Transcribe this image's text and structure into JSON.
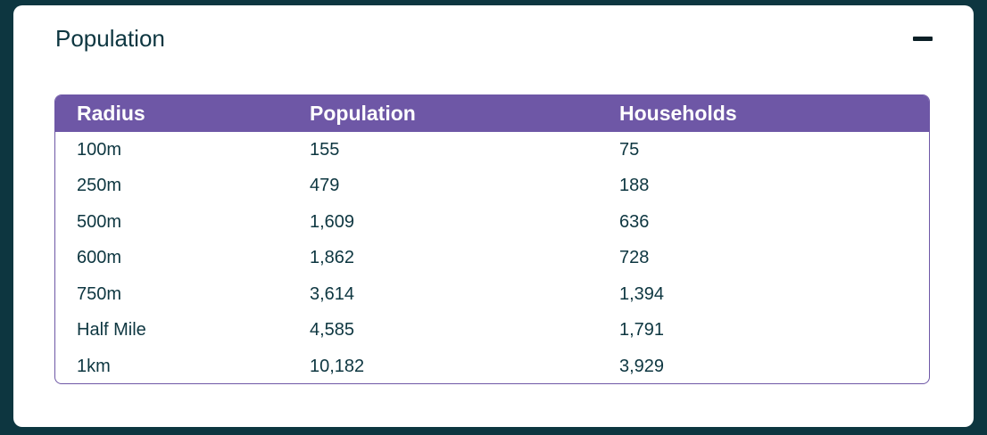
{
  "card": {
    "title": "Population",
    "collapse_icon": "minus-icon"
  },
  "table": {
    "headers": [
      "Radius",
      "Population",
      "Households"
    ],
    "rows": [
      [
        "100m",
        "155",
        "75"
      ],
      [
        "250m",
        "479",
        "188"
      ],
      [
        "500m",
        "1,609",
        "636"
      ],
      [
        "600m",
        "1,862",
        "728"
      ],
      [
        "750m",
        "3,614",
        "1,394"
      ],
      [
        "Half Mile",
        "4,585",
        "1,791"
      ],
      [
        "1km",
        "10,182",
        "3,929"
      ]
    ]
  },
  "colors": {
    "page_background": "#0d3640",
    "card_background": "#ffffff",
    "header_background": "#6e57a6",
    "header_text": "#ffffff",
    "body_text": "#0d3640"
  }
}
